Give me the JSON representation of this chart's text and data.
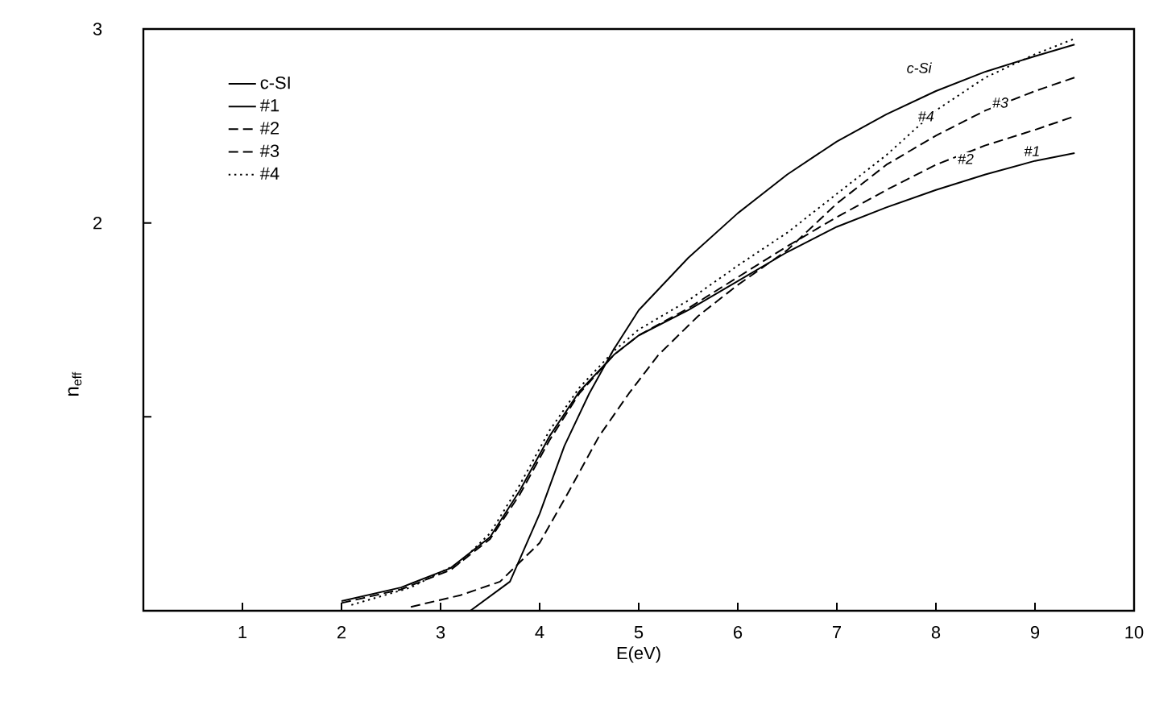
{
  "chart_data": {
    "type": "line",
    "xlabel": "E(eV)",
    "ylabel": "n$_{eff}$",
    "xlim": [
      0,
      10
    ],
    "ylim": [
      0,
      3
    ],
    "xticks": [
      1,
      2,
      3,
      4,
      5,
      6,
      7,
      8,
      9,
      10
    ],
    "yticks": [
      {
        "value": 1,
        "label": null
      },
      2,
      3
    ],
    "grid": false,
    "legend": "top left",
    "marker": "none",
    "series": [
      {
        "name": "c-SI",
        "color": "#000000",
        "line_style": "solid",
        "x": [
          3.3,
          3.7,
          4.0,
          4.25,
          4.5,
          4.75,
          5.0,
          5.5,
          6.0,
          6.5,
          7.0,
          7.5,
          8.0,
          8.5,
          9.0,
          9.4
        ],
        "values": [
          0.0,
          0.15,
          0.5,
          0.85,
          1.12,
          1.35,
          1.55,
          1.82,
          2.05,
          2.25,
          2.42,
          2.56,
          2.68,
          2.78,
          2.86,
          2.92
        ]
      },
      {
        "name": "#1",
        "color": "#000000",
        "line_style": "solid",
        "x": [
          2.0,
          2.6,
          3.1,
          3.5,
          3.8,
          4.1,
          4.4,
          4.75,
          5.0,
          5.5,
          6.0,
          6.5,
          7.0,
          7.5,
          8.0,
          8.5,
          9.0,
          9.4
        ],
        "values": [
          0.05,
          0.12,
          0.22,
          0.38,
          0.62,
          0.9,
          1.13,
          1.32,
          1.42,
          1.55,
          1.7,
          1.85,
          1.98,
          2.08,
          2.17,
          2.25,
          2.32,
          2.36
        ]
      },
      {
        "name": "#2",
        "color": "#000000",
        "line_style": "dashed",
        "x": [
          2.0,
          2.6,
          3.1,
          3.5,
          3.8,
          4.1,
          4.4,
          4.75,
          5.0,
          5.5,
          6.0,
          6.5,
          7.0,
          7.5,
          8.0,
          8.5,
          9.0,
          9.4
        ],
        "values": [
          0.04,
          0.11,
          0.21,
          0.37,
          0.6,
          0.88,
          1.12,
          1.32,
          1.42,
          1.56,
          1.72,
          1.88,
          2.03,
          2.17,
          2.3,
          2.4,
          2.48,
          2.55
        ]
      },
      {
        "name": "#3",
        "color": "#000000",
        "line_style": "dashed",
        "x": [
          2.7,
          3.2,
          3.6,
          4.0,
          4.3,
          4.6,
          4.9,
          5.2,
          5.6,
          6.0,
          6.5,
          7.0,
          7.5,
          8.0,
          8.5,
          9.0,
          9.4
        ],
        "values": [
          0.02,
          0.08,
          0.15,
          0.35,
          0.62,
          0.9,
          1.12,
          1.32,
          1.52,
          1.68,
          1.86,
          2.1,
          2.3,
          2.45,
          2.58,
          2.68,
          2.75
        ]
      },
      {
        "name": "#4",
        "color": "#000000",
        "line_style": "dotted",
        "x": [
          2.1,
          2.7,
          3.2,
          3.5,
          3.8,
          4.1,
          4.4,
          4.75,
          5.0,
          5.5,
          6.0,
          6.5,
          7.0,
          7.5,
          8.0,
          8.5,
          9.0,
          9.4
        ],
        "values": [
          0.03,
          0.12,
          0.25,
          0.4,
          0.65,
          0.93,
          1.15,
          1.34,
          1.45,
          1.6,
          1.78,
          1.95,
          2.15,
          2.35,
          2.58,
          2.75,
          2.87,
          2.95
        ]
      }
    ],
    "annotations": [
      {
        "text": "c-Si",
        "x": 7.83,
        "y": 2.8
      },
      {
        "text": "#4",
        "x": 7.9,
        "y": 2.55
      },
      {
        "text": "#3",
        "x": 8.65,
        "y": 2.62
      },
      {
        "text": "#2",
        "x": 8.3,
        "y": 2.33
      },
      {
        "text": "#1",
        "x": 8.97,
        "y": 2.37
      }
    ]
  }
}
